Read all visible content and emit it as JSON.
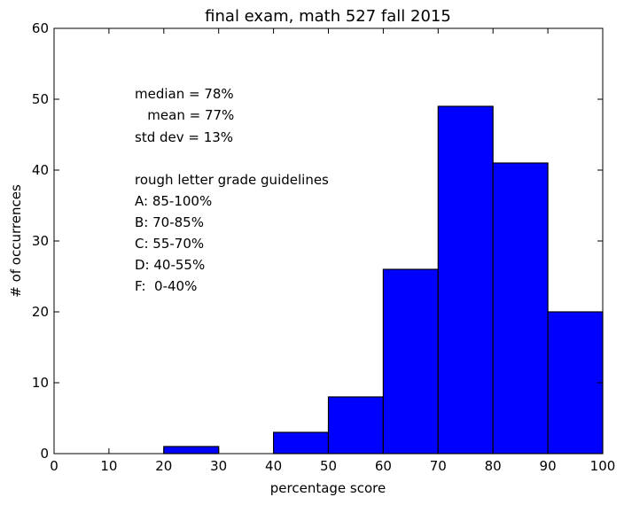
{
  "chart_data": {
    "type": "bar",
    "title": "final exam, math 527 fall 2015",
    "xlabel": "percentage score",
    "ylabel": "# of occurrences",
    "xlim": [
      0,
      100
    ],
    "ylim": [
      0,
      60
    ],
    "bin_edges": [
      0,
      10,
      20,
      30,
      40,
      50,
      60,
      70,
      80,
      90,
      100
    ],
    "values": [
      0,
      0,
      1,
      0,
      3,
      8,
      26,
      49,
      41,
      20
    ],
    "xticks": [
      "0",
      "10",
      "20",
      "30",
      "40",
      "50",
      "60",
      "70",
      "80",
      "90",
      "100"
    ],
    "yticks": [
      "0",
      "10",
      "20",
      "30",
      "40",
      "50",
      "60"
    ],
    "bar_color": "#0000ff",
    "edge_color": "#000000",
    "grid": false,
    "annotations": [
      "median = 78%",
      "   mean = 77%",
      "std dev = 13%",
      "rough letter grade guidelines",
      "A: 85-100%",
      "B: 70-85%",
      "C: 55-70%",
      "D: 40-55%",
      "F:  0-40%"
    ]
  }
}
